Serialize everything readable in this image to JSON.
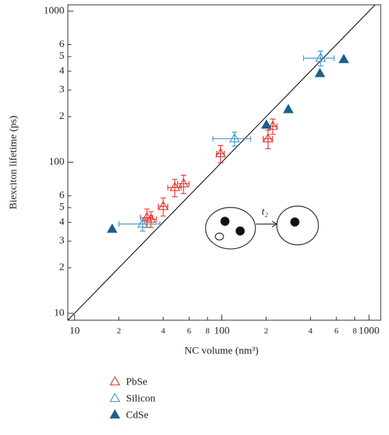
{
  "chart_data": {
    "type": "scatter",
    "xlabel": "NC volume (nm³)",
    "ylabel": "Biexciton lifetime (ps)",
    "log_x": true,
    "log_y": true,
    "xlim": [
      9,
      1200
    ],
    "ylim": [
      9,
      1100
    ],
    "xticks": [
      10,
      {
        "value": 20,
        "label": "2"
      },
      {
        "value": 40,
        "label": "4"
      },
      {
        "value": 60,
        "label": "6"
      },
      {
        "value": 80,
        "label": "8"
      },
      100,
      {
        "value": 200,
        "label": "2"
      },
      {
        "value": 400,
        "label": "4"
      },
      {
        "value": 600,
        "label": "6"
      },
      {
        "value": 800,
        "label": "8"
      },
      1000
    ],
    "yticks": [
      10,
      {
        "value": 20,
        "label": "2"
      },
      {
        "value": 30,
        "label": "3"
      },
      {
        "value": 40,
        "label": "4"
      },
      {
        "value": 50,
        "label": "5"
      },
      {
        "value": 60,
        "label": "6"
      },
      100,
      {
        "value": 200,
        "label": "2"
      },
      {
        "value": 300,
        "label": "3"
      },
      {
        "value": 400,
        "label": "4"
      },
      {
        "value": 500,
        "label": "5"
      },
      {
        "value": 600,
        "label": "6"
      },
      1000
    ],
    "reference_line": [
      9,
      1100
    ],
    "annotation": "t₂",
    "series": [
      {
        "name": "PbSe",
        "color": "#e5322d",
        "marker": "open",
        "x": [
          31,
          33,
          40,
          48,
          55,
          98,
          206,
          222
        ],
        "values": [
          43,
          42,
          51,
          68,
          72,
          114,
          143,
          173
        ],
        "xerr": [
          3,
          3,
          3,
          5,
          5,
          6,
          15,
          15
        ],
        "yerr": [
          6,
          5,
          7,
          9,
          10,
          15,
          20,
          20
        ]
      },
      {
        "name": "Silicon",
        "color": "#3a97c4",
        "marker": "open",
        "x": [
          29,
          122,
          469
        ],
        "values": [
          39,
          143,
          488
        ],
        "xerr": [
          9,
          35,
          110
        ],
        "yerr": [
          4,
          15,
          55
        ]
      },
      {
        "name": "CdSe",
        "color": "#1d5f8c",
        "marker": "filled",
        "x": [
          18,
          201,
          283,
          464,
          674
        ],
        "values": [
          36,
          176,
          223,
          386,
          478
        ]
      }
    ]
  }
}
